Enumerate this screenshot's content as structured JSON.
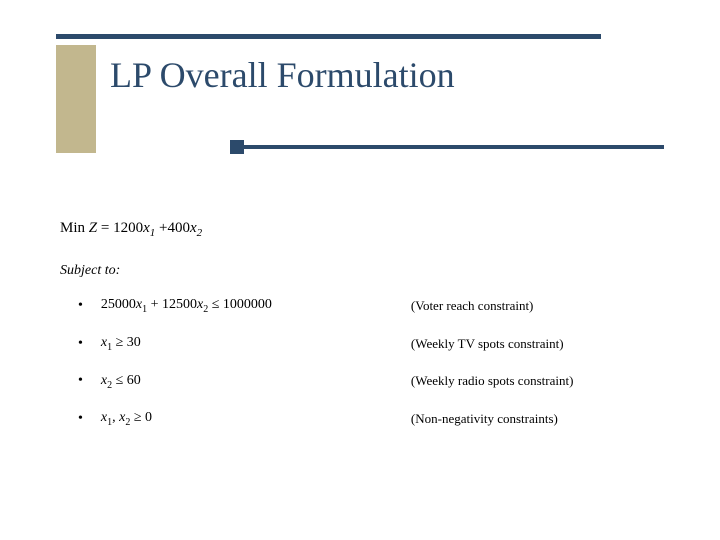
{
  "colors": {
    "rule": "#2c4a6b",
    "beige": "#c2b78e",
    "background": "#ffffff",
    "text": "#000000"
  },
  "title": "LP Overall Formulation",
  "objective_prefix": "Min ",
  "objective_var": "Z",
  "objective_rest": " = 1200x₁ +400x₂",
  "subject_to": "Subject to:",
  "constraints": [
    {
      "formula": "25000x₁ + 12500x₂ ≤ 1000000",
      "desc": "(Voter reach constraint)"
    },
    {
      "formula": "x₁ ≥ 30",
      "desc": "(Weekly TV spots constraint)"
    },
    {
      "formula": "x₂ ≤ 60",
      "desc": "(Weekly radio spots constraint)"
    },
    {
      "formula": "x₁, x₂ ≥ 0",
      "desc": "(Non-negativity constraints)"
    }
  ]
}
